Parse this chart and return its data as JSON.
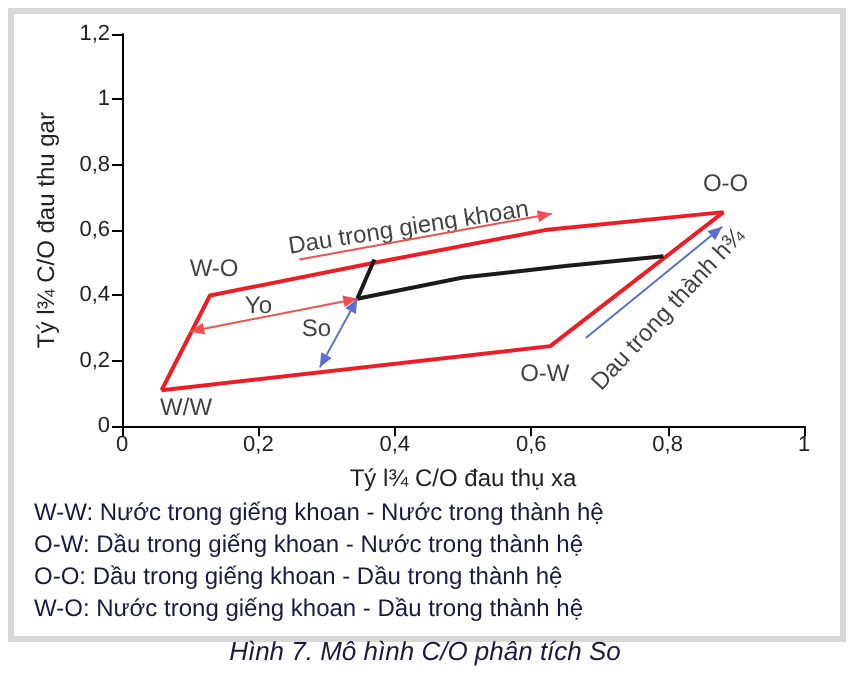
{
  "chart_data": {
    "type": "line",
    "title": "Hình 7. Mô hình C/O phân tích So",
    "xlabel": "Tý l¾ C/O đau thụ xa",
    "ylabel": "Tý l¾ C/O đau thu gar",
    "xlim": [
      0,
      1
    ],
    "ylim": [
      0,
      1.2
    ],
    "xticks": [
      0,
      {
        "value": 0.2,
        "label": "0,2"
      },
      {
        "value": 0.4,
        "label": "0,4"
      },
      {
        "value": 0.6,
        "label": "0,6"
      },
      {
        "value": 0.8,
        "label": "0,8"
      },
      1
    ],
    "yticks": [
      0,
      {
        "value": 0.2,
        "label": "0,2"
      },
      {
        "value": 0.4,
        "label": "0,4"
      },
      {
        "value": 0.6,
        "label": "0,6"
      },
      {
        "value": 0.8,
        "label": "0,8"
      },
      1,
      {
        "value": 1.2,
        "label": "1,2"
      }
    ],
    "grid": false,
    "marker": "none",
    "series": [
      {
        "color": "#ee1c25",
        "x": [
          0.058,
          0.129,
          0.37,
          0.62,
          0.882
        ],
        "values": [
          0.11,
          0.4,
          0.5,
          0.6,
          0.655
        ]
      },
      {
        "color": "#ee1c25",
        "x": [
          0.058,
          0.628,
          0.882
        ],
        "values": [
          0.11,
          0.245,
          0.655
        ]
      },
      {
        "color": "#1a1a1a",
        "x": [
          0.345,
          0.37
        ],
        "values": [
          0.39,
          0.51
        ]
      },
      {
        "color": "#1a1a1a",
        "x": [
          0.345,
          0.5,
          0.65,
          0.794
        ],
        "values": [
          0.39,
          0.455,
          0.49,
          0.52
        ]
      }
    ],
    "annotations": [
      "W/W",
      "W-O",
      "O-O",
      "O-W",
      "Yo",
      {
        "text": "So",
        "x": 0.345,
        "y": 0.39
      },
      "Dau trong gieng khoan",
      "Dau trong thành h¾",
      "W-W: Nước trong giếng khoan - Nước trong thành hệ",
      "O-W: Dầu trong giếng khoan - Nước trong thành hệ",
      "O-O: Dầu trong giếng khoan - Dầu trong thành hệ",
      "W-O: Nước trong giếng khoan - Dầu trong thành hệ"
    ]
  }
}
